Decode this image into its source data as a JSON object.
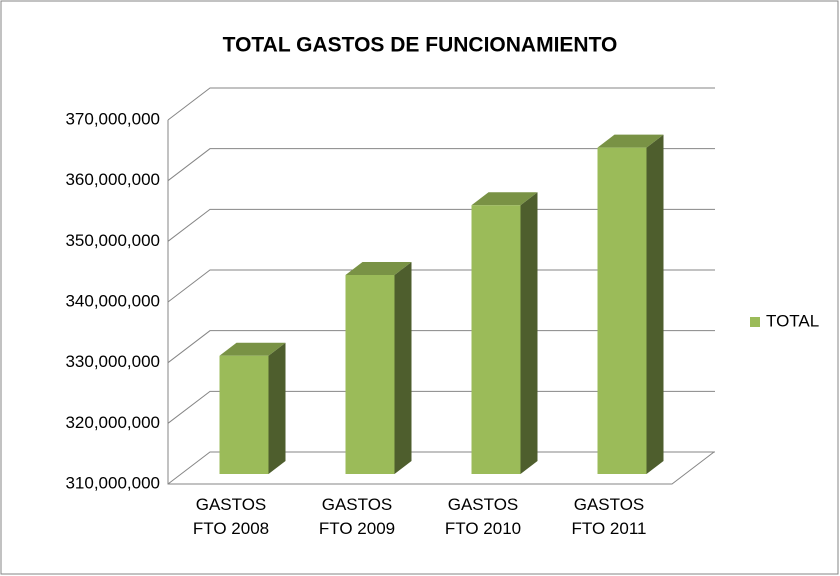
{
  "chart_data": {
    "type": "bar3d",
    "title": "TOTAL GASTOS DE FUNCIONAMIENTO",
    "categories": [
      "GASTOS FTO 2008",
      "GASTOS FTO 2009",
      "GASTOS FTO 2010",
      "GASTOS FTO 2011"
    ],
    "series": [
      {
        "name": "TOTAL",
        "color": "#9bbb59",
        "values": [
          329500000,
          342800000,
          354300000,
          363800000
        ]
      }
    ],
    "ylim": [
      310000000,
      370000000
    ],
    "yticks": [
      {
        "value": 310000000,
        "label": "310,000,000"
      },
      {
        "value": 320000000,
        "label": "320,000,000"
      },
      {
        "value": 330000000,
        "label": "330,000,000"
      },
      {
        "value": 340000000,
        "label": "340,000,000"
      },
      {
        "value": 350000000,
        "label": "350,000,000"
      },
      {
        "value": 360000000,
        "label": "360,000,000"
      },
      {
        "value": 370000000,
        "label": "370,000,000"
      }
    ],
    "grid": true,
    "legend": "right"
  }
}
